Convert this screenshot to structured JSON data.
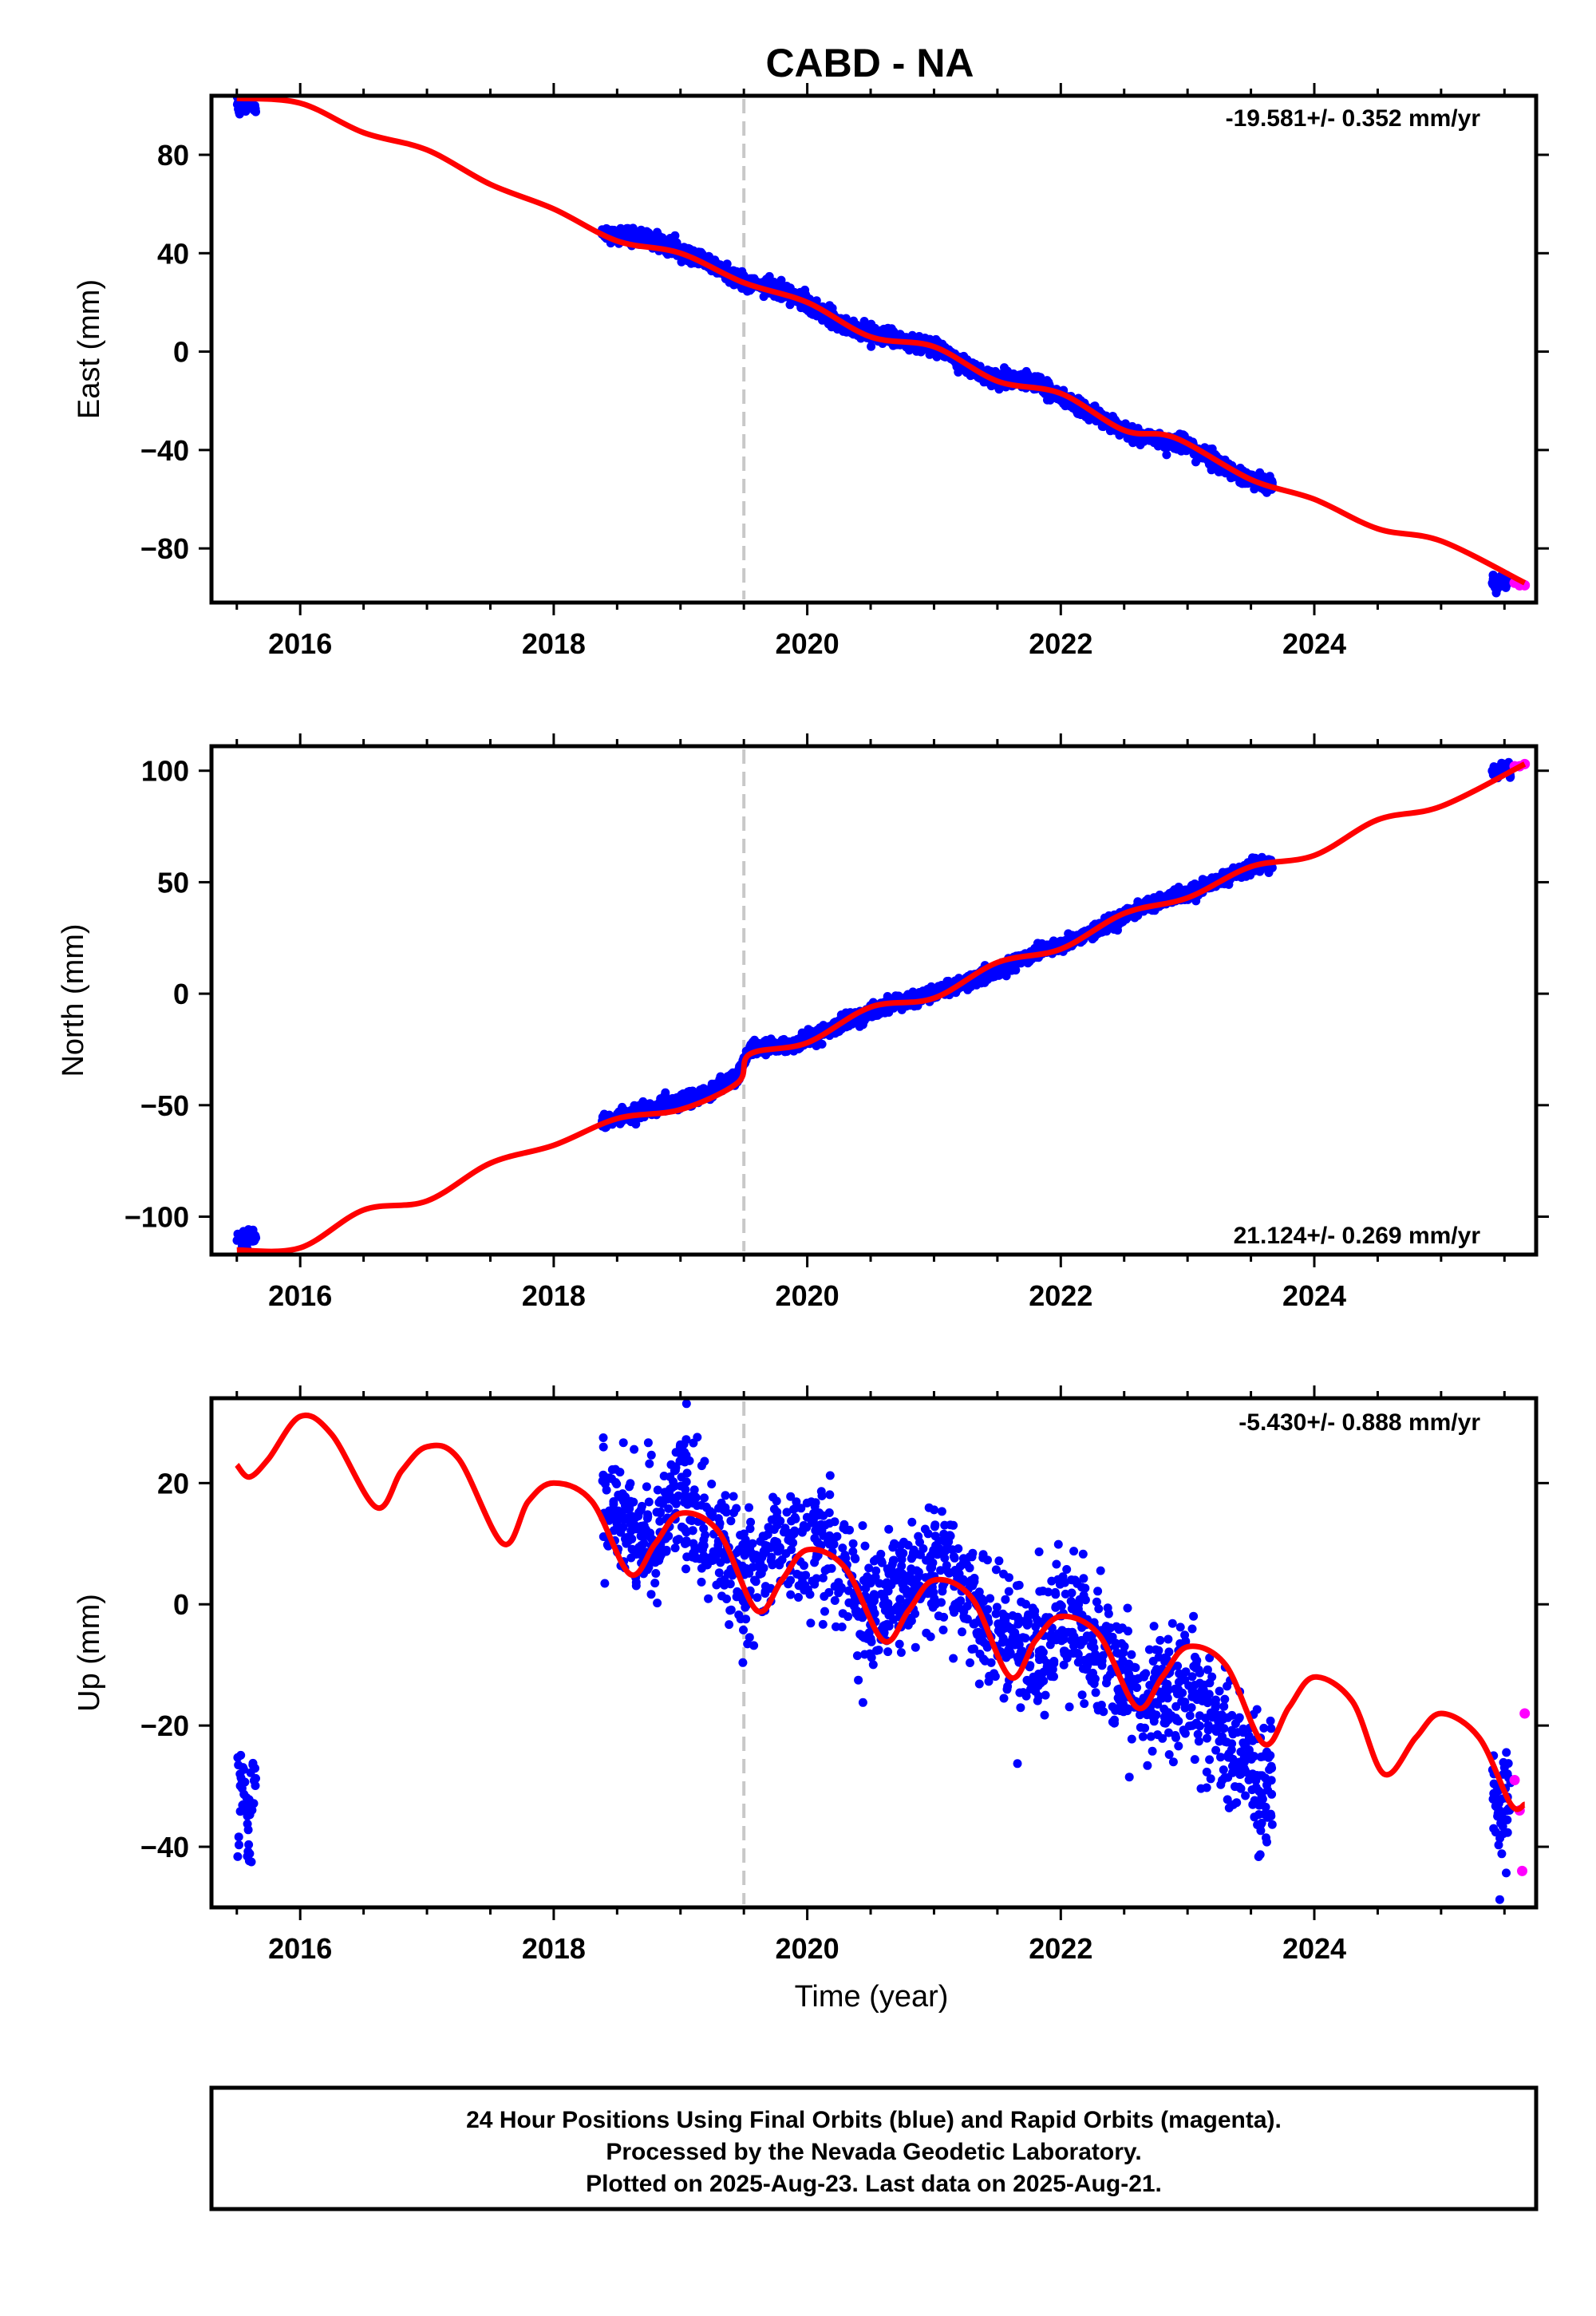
{
  "title": "CABD - NA",
  "xlabel": "Time (year)",
  "footer": {
    "line1": "24 Hour Positions Using Final Orbits (blue) and Rapid Orbits (magenta).",
    "line2": "Processed by the Nevada Geodetic Laboratory.",
    "line3": "Plotted on 2025-Aug-23. Last data on 2025-Aug-21."
  },
  "colors": {
    "final_orbits": "#0000ff",
    "rapid_orbits": "#ff00ff",
    "model": "#ff0000",
    "event_line": "#c8c8c8"
  },
  "chart_data": [
    {
      "type": "scatter",
      "ylabel": "East (mm)",
      "rate_label": "-19.581+/- 0.352 mm/yr",
      "xlim": [
        2015.3,
        2025.75
      ],
      "ylim": [
        -102,
        104
      ],
      "xticks": [
        2016,
        2018,
        2020,
        2022,
        2024
      ],
      "yticks": [
        80,
        40,
        0,
        -40,
        -80
      ],
      "event_line_x": 2019.5,
      "final_segments": [
        {
          "start": 2015.5,
          "end": 2015.65,
          "points": [
            [
              2015.5,
              101
            ],
            [
              2015.55,
              100
            ],
            [
              2015.6,
              101
            ],
            [
              2015.65,
              100
            ]
          ]
        },
        {
          "start": 2018.38,
          "end": 2023.67,
          "points": [
            [
              2018.4,
              48
            ],
            [
              2018.8,
              45
            ],
            [
              2019.2,
              37
            ],
            [
              2019.5,
              28
            ],
            [
              2019.9,
              23
            ],
            [
              2020.3,
              10
            ],
            [
              2020.7,
              5
            ],
            [
              2021.0,
              2
            ],
            [
              2021.4,
              -10
            ],
            [
              2021.8,
              -13
            ],
            [
              2022.2,
              -24
            ],
            [
              2022.6,
              -34
            ],
            [
              2023.0,
              -38
            ],
            [
              2023.4,
              -50
            ],
            [
              2023.67,
              -54
            ]
          ]
        },
        {
          "start": 2025.4,
          "end": 2025.55,
          "points": [
            [
              2025.4,
              -93
            ],
            [
              2025.5,
              -94
            ],
            [
              2025.55,
              -92
            ]
          ]
        }
      ],
      "rapid_points": [
        [
          2025.58,
          -94
        ],
        [
          2025.62,
          -95
        ],
        [
          2025.66,
          -95
        ]
      ],
      "model_curve": [
        [
          2015.5,
          103
        ],
        [
          2016.0,
          101
        ],
        [
          2016.5,
          89
        ],
        [
          2017.0,
          82
        ],
        [
          2017.5,
          68
        ],
        [
          2018.0,
          58
        ],
        [
          2018.5,
          45
        ],
        [
          2019.0,
          40
        ],
        [
          2019.5,
          28
        ],
        [
          2020.0,
          20
        ],
        [
          2020.5,
          6
        ],
        [
          2021.0,
          2
        ],
        [
          2021.5,
          -12
        ],
        [
          2022.0,
          -17
        ],
        [
          2022.5,
          -32
        ],
        [
          2022.9,
          -35
        ],
        [
          2023.5,
          -52
        ],
        [
          2024.0,
          -60
        ],
        [
          2024.5,
          -72
        ],
        [
          2025.0,
          -77
        ],
        [
          2025.66,
          -94
        ]
      ]
    },
    {
      "type": "scatter",
      "ylabel": "North (mm)",
      "rate_label": "21.124+/- 0.269 mm/yr",
      "xlim": [
        2015.3,
        2025.75
      ],
      "ylim": [
        -117,
        111
      ],
      "xticks": [
        2016,
        2018,
        2020,
        2022,
        2024
      ],
      "yticks": [
        100,
        50,
        0,
        -50,
        -100
      ],
      "event_line_x": 2019.5,
      "final_segments": [
        {
          "start": 2015.5,
          "end": 2015.65,
          "points": [
            [
              2015.5,
              -110
            ],
            [
              2015.55,
              -109
            ],
            [
              2015.6,
              -110
            ],
            [
              2015.65,
              -109
            ]
          ]
        },
        {
          "start": 2018.38,
          "end": 2023.67,
          "points": [
            [
              2018.4,
              -57
            ],
            [
              2018.8,
              -51
            ],
            [
              2019.2,
              -45
            ],
            [
              2019.45,
              -37
            ],
            [
              2019.55,
              -25
            ],
            [
              2019.9,
              -23
            ],
            [
              2020.3,
              -13
            ],
            [
              2020.7,
              -4
            ],
            [
              2021.0,
              0
            ],
            [
              2021.4,
              8
            ],
            [
              2021.8,
              18
            ],
            [
              2022.2,
              26
            ],
            [
              2022.6,
              38
            ],
            [
              2023.0,
              45
            ],
            [
              2023.4,
              55
            ],
            [
              2023.67,
              59
            ]
          ]
        },
        {
          "start": 2025.4,
          "end": 2025.55,
          "points": [
            [
              2025.4,
              99
            ],
            [
              2025.5,
              102
            ],
            [
              2025.55,
              101
            ]
          ]
        }
      ],
      "rapid_points": [
        [
          2025.58,
          102
        ],
        [
          2025.62,
          102
        ],
        [
          2025.66,
          103
        ]
      ],
      "model_curve": [
        [
          2015.5,
          -115
        ],
        [
          2016.0,
          -114
        ],
        [
          2016.5,
          -97
        ],
        [
          2017.0,
          -93
        ],
        [
          2017.5,
          -76
        ],
        [
          2018.0,
          -68
        ],
        [
          2018.5,
          -56
        ],
        [
          2019.0,
          -52
        ],
        [
          2019.45,
          -40
        ],
        [
          2019.55,
          -27
        ],
        [
          2020.0,
          -22
        ],
        [
          2020.5,
          -6
        ],
        [
          2021.0,
          -2
        ],
        [
          2021.5,
          14
        ],
        [
          2022.0,
          20
        ],
        [
          2022.5,
          36
        ],
        [
          2023.0,
          43
        ],
        [
          2023.5,
          57
        ],
        [
          2024.0,
          62
        ],
        [
          2024.5,
          78
        ],
        [
          2025.0,
          84
        ],
        [
          2025.66,
          103
        ]
      ]
    },
    {
      "type": "scatter",
      "ylabel": "Up (mm)",
      "rate_label": "-5.430+/- 0.888 mm/yr",
      "xlim": [
        2015.3,
        2025.75
      ],
      "ylim": [
        -50,
        34
      ],
      "xticks": [
        2016,
        2018,
        2020,
        2022,
        2024
      ],
      "yticks": [
        20,
        0,
        -20,
        -40
      ],
      "event_line_x": 2019.5,
      "final_segments": [
        {
          "start": 2015.5,
          "end": 2015.65,
          "points": [
            [
              2015.5,
              -32
            ],
            [
              2015.55,
              -27
            ],
            [
              2015.6,
              -36
            ],
            [
              2015.65,
              -31
            ]
          ]
        },
        {
          "start": 2018.38,
          "end": 2023.67,
          "points": [
            [
              2018.4,
              17
            ],
            [
              2018.8,
              11
            ],
            [
              2019.0,
              19
            ],
            [
              2019.2,
              13
            ],
            [
              2019.5,
              5
            ],
            [
              2019.9,
              11
            ],
            [
              2020.2,
              9
            ],
            [
              2020.5,
              -1
            ],
            [
              2020.8,
              4
            ],
            [
              2021.1,
              6
            ],
            [
              2021.5,
              -6
            ],
            [
              2021.8,
              -9
            ],
            [
              2022.0,
              -1
            ],
            [
              2022.4,
              -11
            ],
            [
              2022.7,
              -17
            ],
            [
              2023.0,
              -12
            ],
            [
              2023.3,
              -22
            ],
            [
              2023.6,
              -30
            ]
          ]
        },
        {
          "start": 2025.4,
          "end": 2025.55,
          "points": [
            [
              2025.4,
              -33
            ],
            [
              2025.5,
              -36
            ],
            [
              2025.55,
              -30
            ]
          ]
        }
      ],
      "rapid_points": [
        [
          2025.58,
          -29
        ],
        [
          2025.62,
          -34
        ],
        [
          2025.64,
          -44
        ],
        [
          2025.66,
          -18
        ]
      ],
      "model_curve": [
        [
          2015.5,
          23
        ],
        [
          2015.6,
          21
        ],
        [
          2015.75,
          24
        ],
        [
          2016.0,
          31
        ],
        [
          2016.25,
          28
        ],
        [
          2016.6,
          16
        ],
        [
          2016.8,
          22
        ],
        [
          2017.0,
          26
        ],
        [
          2017.25,
          24
        ],
        [
          2017.6,
          10
        ],
        [
          2017.8,
          17
        ],
        [
          2018.0,
          20
        ],
        [
          2018.3,
          17
        ],
        [
          2018.6,
          5
        ],
        [
          2018.8,
          10
        ],
        [
          2019.0,
          15
        ],
        [
          2019.3,
          12
        ],
        [
          2019.6,
          -1
        ],
        [
          2019.8,
          4
        ],
        [
          2020.0,
          9
        ],
        [
          2020.3,
          6
        ],
        [
          2020.6,
          -6
        ],
        [
          2020.8,
          -1
        ],
        [
          2021.0,
          4
        ],
        [
          2021.3,
          1
        ],
        [
          2021.6,
          -12
        ],
        [
          2021.8,
          -6
        ],
        [
          2022.0,
          -2
        ],
        [
          2022.3,
          -5
        ],
        [
          2022.6,
          -17
        ],
        [
          2022.8,
          -12
        ],
        [
          2023.0,
          -7
        ],
        [
          2023.3,
          -10
        ],
        [
          2023.6,
          -23
        ],
        [
          2023.8,
          -17
        ],
        [
          2024.0,
          -12
        ],
        [
          2024.3,
          -16
        ],
        [
          2024.55,
          -28
        ],
        [
          2024.8,
          -22
        ],
        [
          2025.0,
          -18
        ],
        [
          2025.3,
          -22
        ],
        [
          2025.55,
          -33
        ],
        [
          2025.66,
          -33
        ]
      ]
    }
  ]
}
